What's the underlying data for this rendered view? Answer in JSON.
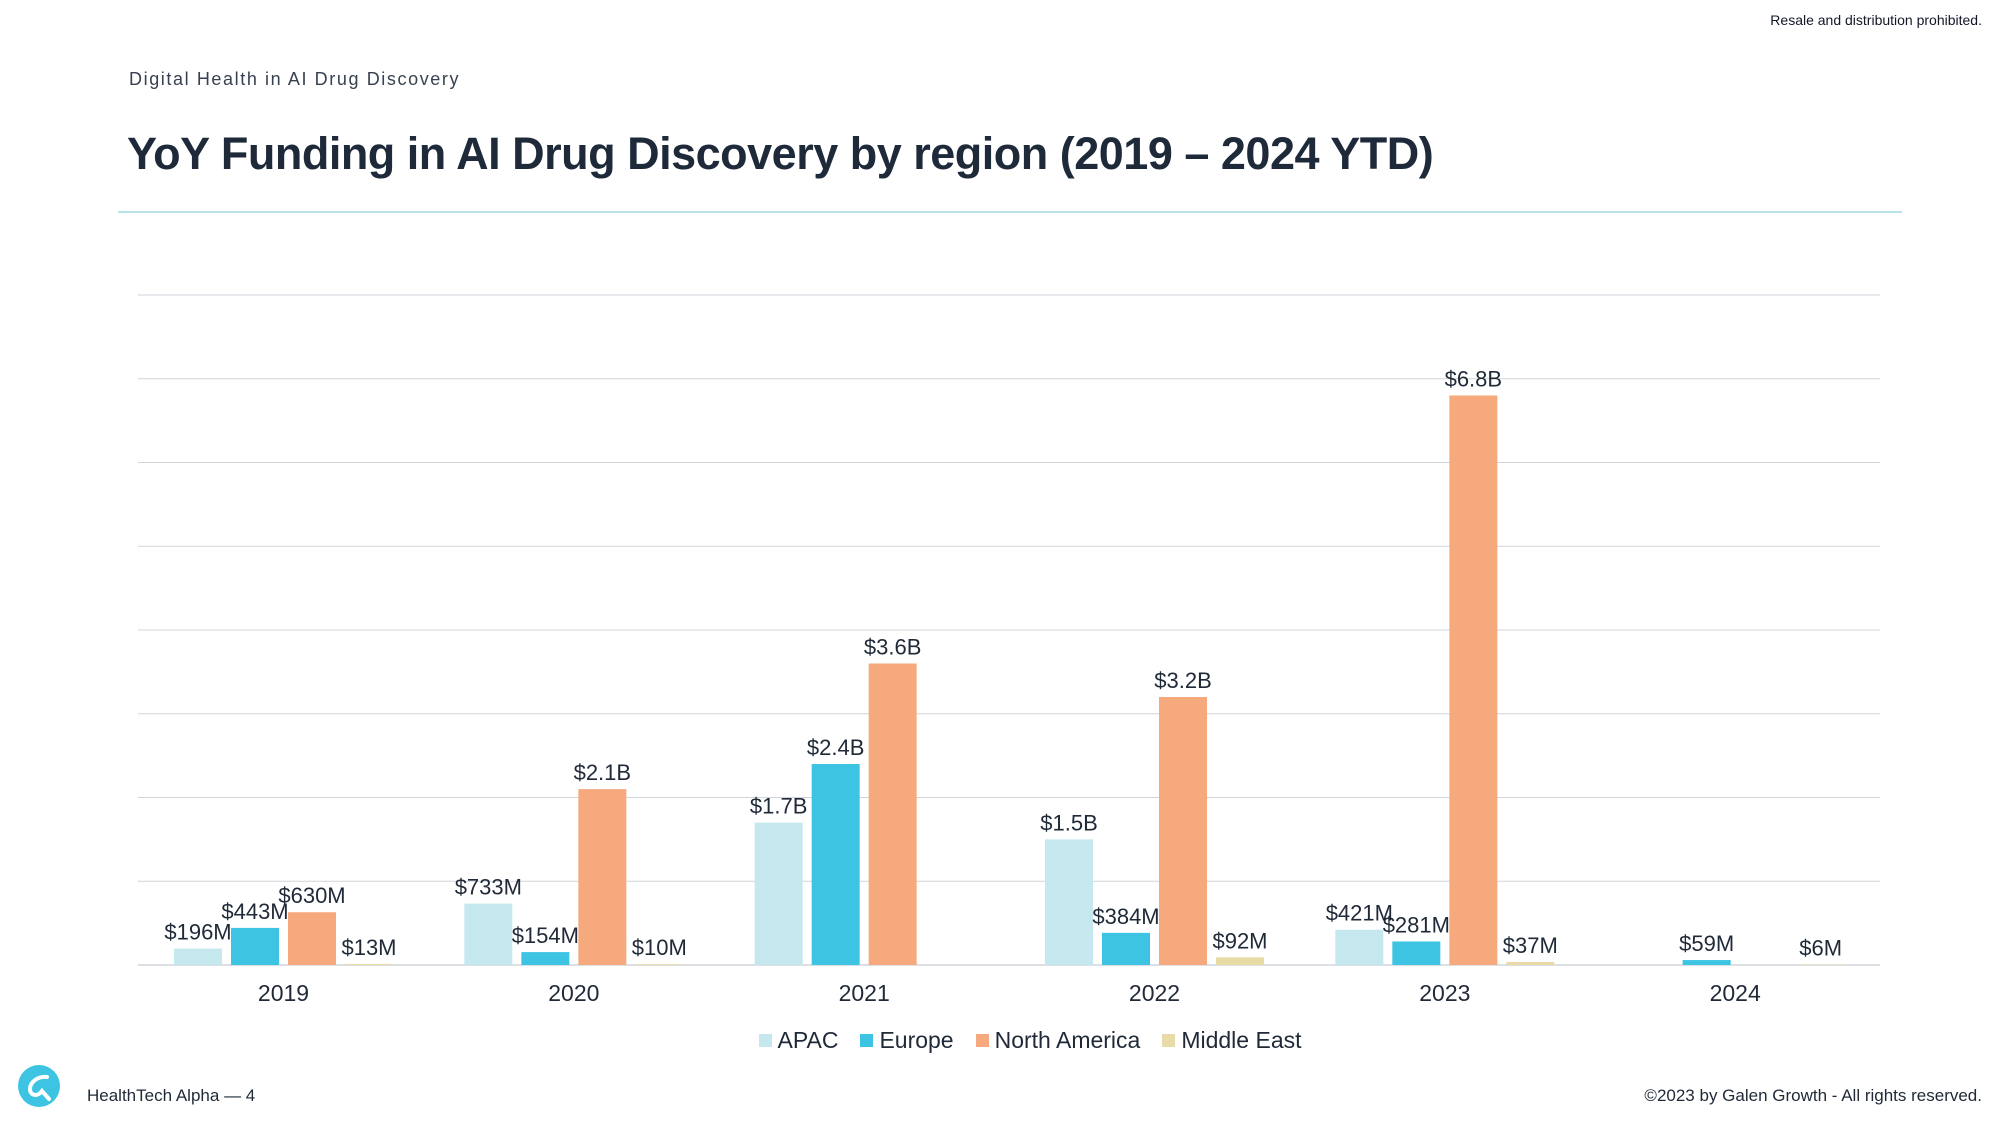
{
  "header": {
    "notice": "Resale and distribution prohibited.",
    "eyebrow": "Digital Health in AI Drug Discovery",
    "title": "YoY Funding in AI Drug Discovery by region (2019 – 2024 YTD)"
  },
  "footer": {
    "brand": "HealthTech Alpha",
    "separator": "—",
    "page": "4",
    "copyright": "©2023 by Galen Growth  - All rights reserved."
  },
  "colors": {
    "APAC": "#c5e7ee",
    "Europe": "#3cc4e2",
    "North America": "#f5a97c",
    "Middle East": "#e8dba8",
    "grid": "#d1d5db",
    "rule": "#b9e3ea"
  },
  "chart_data": {
    "type": "bar",
    "categories": [
      "2019",
      "2020",
      "2021",
      "2022",
      "2023",
      "2024"
    ],
    "series": [
      {
        "name": "APAC",
        "values": [
          196,
          733,
          1700,
          1500,
          421,
          null
        ],
        "labels": [
          "$196M",
          "$733M",
          "$1.7B",
          "$1.5B",
          "$421M",
          ""
        ]
      },
      {
        "name": "Europe",
        "values": [
          443,
          154,
          2400,
          384,
          281,
          59
        ],
        "labels": [
          "$443M",
          "$154M",
          "$2.4B",
          "$384M",
          "$281M",
          "$59M"
        ]
      },
      {
        "name": "North America",
        "values": [
          630,
          2100,
          3600,
          3200,
          6800,
          null
        ],
        "labels": [
          "$630M",
          "$2.1B",
          "$3.6B",
          "$3.2B",
          "$6.8B",
          ""
        ]
      },
      {
        "name": "Middle East",
        "values": [
          13,
          10,
          null,
          92,
          37,
          6
        ],
        "labels": [
          "$13M",
          "$10M",
          "",
          "$92M",
          "$37M",
          "$6M"
        ]
      }
    ],
    "unit": "USD millions",
    "ylim": [
      0,
      8000
    ],
    "grid": true,
    "legend": "bottom-center"
  }
}
